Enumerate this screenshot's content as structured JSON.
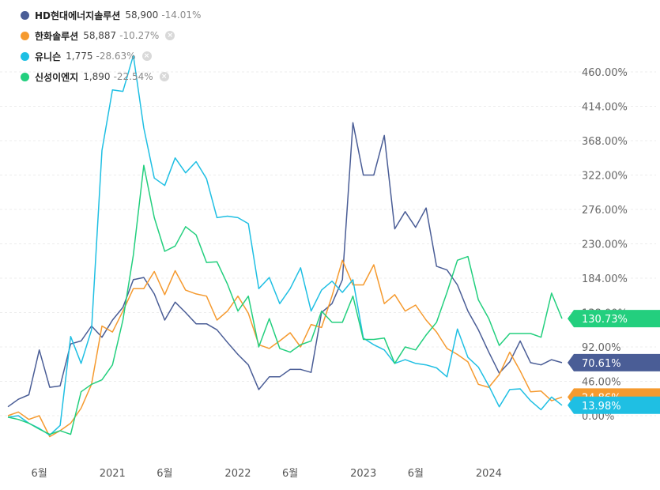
{
  "legend": [
    {
      "name": "HD현대에너지솔루션",
      "value": "58,900",
      "change": "-14.01%",
      "color": "#4a5d96",
      "closable": false
    },
    {
      "name": "한화솔루션",
      "value": "58,887",
      "change": "-10.27%",
      "color": "#f59a2f",
      "closable": true
    },
    {
      "name": "유니슨",
      "value": "1,775",
      "change": "-28.63%",
      "color": "#1fbfe3",
      "closable": true
    },
    {
      "name": "신성이엔지",
      "value": "1,890",
      "change": "-22.54%",
      "color": "#23cf7e",
      "closable": true
    }
  ],
  "close_glyph": "×",
  "chart_data": {
    "type": "line",
    "title": "",
    "xlabel": "",
    "ylabel": "",
    "y_unit": "%",
    "ylim": [
      -40,
      480
    ],
    "yticks": [
      "0.00%",
      "46.00%",
      "92.00%",
      "138.00%",
      "184.00%",
      "230.00%",
      "276.00%",
      "322.00%",
      "368.00%",
      "414.00%",
      "460.00%"
    ],
    "ytick_values": [
      0,
      46,
      92,
      138,
      184,
      230,
      276,
      322,
      368,
      414,
      460
    ],
    "x_start": "2020-03",
    "x_count": 54,
    "xticks": [
      {
        "label": "6월",
        "index": 3
      },
      {
        "label": "2021",
        "index": 10
      },
      {
        "label": "6월",
        "index": 15
      },
      {
        "label": "2022",
        "index": 22
      },
      {
        "label": "6월",
        "index": 27
      },
      {
        "label": "2023",
        "index": 34
      },
      {
        "label": "6월",
        "index": 39
      },
      {
        "label": "2024",
        "index": 46
      }
    ],
    "grid": true,
    "legend_position": "top-left",
    "series": [
      {
        "name": "HD현대에너지솔루션",
        "color": "#4a5d96",
        "last_label": "70.61%",
        "values": [
          12,
          22,
          28,
          88,
          38,
          40,
          96,
          100,
          120,
          105,
          128,
          145,
          182,
          185,
          163,
          128,
          152,
          138,
          123,
          123,
          115,
          98,
          82,
          68,
          35,
          52,
          52,
          62,
          62,
          58,
          138,
          150,
          182,
          392,
          322,
          322,
          375,
          250,
          273,
          252,
          278,
          200,
          195,
          175,
          140,
          115,
          85,
          57,
          72,
          100,
          71,
          68,
          75,
          71
        ]
      },
      {
        "name": "한화솔루션",
        "color": "#f59a2f",
        "last_label": "24.86%",
        "values": [
          0,
          5,
          -5,
          0,
          -28,
          -20,
          -10,
          10,
          42,
          120,
          112,
          140,
          170,
          170,
          193,
          162,
          194,
          168,
          163,
          160,
          128,
          140,
          160,
          137,
          95,
          90,
          100,
          111,
          92,
          122,
          118,
          160,
          208,
          175,
          175,
          202,
          150,
          162,
          140,
          148,
          128,
          112,
          90,
          82,
          72,
          42,
          38,
          55,
          85,
          60,
          32,
          33,
          20,
          25
        ]
      },
      {
        "name": "유니슨",
        "color": "#1fbfe3",
        "last_label": "13.98%",
        "values": [
          -2,
          0,
          -10,
          -17,
          -26,
          -13,
          106,
          70,
          115,
          355,
          436,
          434,
          482,
          385,
          318,
          308,
          345,
          325,
          340,
          317,
          265,
          267,
          265,
          257,
          170,
          185,
          150,
          170,
          198,
          140,
          168,
          180,
          165,
          182,
          104,
          95,
          88,
          70,
          75,
          70,
          68,
          64,
          52,
          116,
          78,
          65,
          40,
          12,
          35,
          36,
          20,
          8,
          25,
          14
        ]
      },
      {
        "name": "신성이엔지",
        "color": "#23cf7e",
        "last_label": "130.73%",
        "values": [
          -2,
          -5,
          -10,
          -18,
          -25,
          -20,
          -25,
          32,
          42,
          48,
          68,
          128,
          215,
          335,
          265,
          220,
          227,
          253,
          242,
          205,
          206,
          176,
          140,
          160,
          92,
          130,
          90,
          85,
          95,
          100,
          140,
          125,
          125,
          160,
          102,
          102,
          104,
          70,
          92,
          88,
          108,
          125,
          165,
          208,
          213,
          155,
          130,
          94,
          110,
          110,
          110,
          105,
          164,
          130
        ]
      }
    ]
  }
}
